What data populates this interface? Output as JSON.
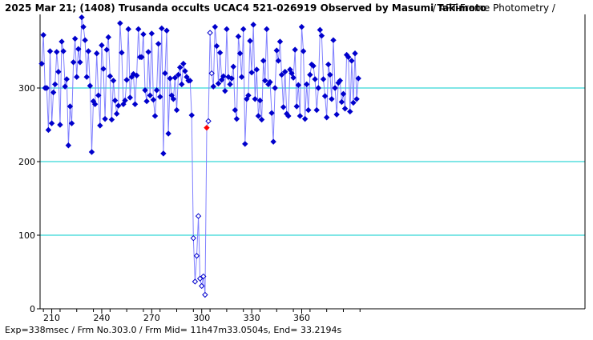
{
  "chart_data": {
    "type": "scatter",
    "title": "2025 Mar 21; (1408) Trusanda occults UCAC4 521-026919 Observed by Masumi Takimoto",
    "subtitle": " / APT-Frame Photometry /",
    "footer": "Exp=338msec / Frm No.303.0 / Frm Mid= 11h47m33.0504s, End= 33.2194s",
    "xlabel": "",
    "ylabel": "",
    "x_ticks": [
      210,
      240,
      270,
      300,
      330,
      360
    ],
    "y_ticks": [
      0,
      100,
      200,
      300
    ],
    "xlim": [
      203,
      530
    ],
    "ylim": [
      0,
      400
    ],
    "grid": "horizontal",
    "colors": {
      "line": "#8080ff",
      "marker": "#0000cc",
      "hollow": "#0000cc",
      "highlight": "#ff0000",
      "grid": "#00cccc"
    },
    "highlight_x": 303,
    "hollow_range": [
      295,
      306
    ],
    "series": [
      {
        "values": [
          [
            204,
            333
          ],
          [
            205,
            372
          ],
          [
            206,
            300
          ],
          [
            207,
            300
          ],
          [
            208,
            243
          ],
          [
            209,
            350
          ],
          [
            210,
            252
          ],
          [
            211,
            294
          ],
          [
            212,
            305
          ],
          [
            213,
            349
          ],
          [
            214,
            322
          ],
          [
            215,
            250
          ],
          [
            216,
            363
          ],
          [
            217,
            350
          ],
          [
            218,
            302
          ],
          [
            219,
            312
          ],
          [
            220,
            222
          ],
          [
            221,
            275
          ],
          [
            222,
            252
          ],
          [
            223,
            335
          ],
          [
            224,
            367
          ],
          [
            225,
            315
          ],
          [
            226,
            353
          ],
          [
            227,
            335
          ],
          [
            228,
            396
          ],
          [
            229,
            383
          ],
          [
            230,
            365
          ],
          [
            231,
            315
          ],
          [
            232,
            350
          ],
          [
            233,
            303
          ],
          [
            234,
            213
          ],
          [
            235,
            282
          ],
          [
            236,
            278
          ],
          [
            237,
            347
          ],
          [
            238,
            290
          ],
          [
            239,
            249
          ],
          [
            240,
            358
          ],
          [
            241,
            326
          ],
          [
            242,
            258
          ],
          [
            243,
            352
          ],
          [
            244,
            369
          ],
          [
            245,
            316
          ],
          [
            246,
            257
          ],
          [
            247,
            310
          ],
          [
            248,
            283
          ],
          [
            249,
            265
          ],
          [
            250,
            276
          ],
          [
            251,
            388
          ],
          [
            252,
            348
          ],
          [
            253,
            278
          ],
          [
            254,
            283
          ],
          [
            255,
            311
          ],
          [
            256,
            380
          ],
          [
            257,
            287
          ],
          [
            258,
            315
          ],
          [
            259,
            319
          ],
          [
            260,
            278
          ],
          [
            261,
            317
          ],
          [
            262,
            380
          ],
          [
            263,
            342
          ],
          [
            264,
            342
          ],
          [
            265,
            373
          ],
          [
            266,
            297
          ],
          [
            267,
            282
          ],
          [
            268,
            349
          ],
          [
            269,
            290
          ],
          [
            270,
            374
          ],
          [
            271,
            284
          ],
          [
            272,
            262
          ],
          [
            273,
            297
          ],
          [
            274,
            360
          ],
          [
            275,
            288
          ],
          [
            276,
            381
          ],
          [
            277,
            211
          ],
          [
            278,
            320
          ],
          [
            279,
            378
          ],
          [
            280,
            238
          ],
          [
            281,
            313
          ],
          [
            282,
            290
          ],
          [
            283,
            285
          ],
          [
            284,
            314
          ],
          [
            285,
            270
          ],
          [
            286,
            318
          ],
          [
            287,
            328
          ],
          [
            288,
            305
          ],
          [
            289,
            333
          ],
          [
            290,
            323
          ],
          [
            291,
            315
          ],
          [
            292,
            310
          ],
          [
            293,
            310
          ],
          [
            294,
            263
          ],
          [
            295,
            96
          ],
          [
            296,
            37
          ],
          [
            297,
            72
          ],
          [
            298,
            126
          ],
          [
            299,
            41
          ],
          [
            300,
            31
          ],
          [
            301,
            44
          ],
          [
            302,
            19
          ],
          [
            303,
            246
          ],
          [
            304,
            255
          ],
          [
            305,
            375
          ],
          [
            306,
            320
          ],
          [
            307,
            302
          ],
          [
            308,
            383
          ],
          [
            309,
            357
          ],
          [
            310,
            306
          ],
          [
            311,
            348
          ],
          [
            312,
            311
          ],
          [
            313,
            316
          ],
          [
            314,
            296
          ],
          [
            315,
            380
          ],
          [
            316,
            315
          ],
          [
            317,
            305
          ],
          [
            318,
            313
          ],
          [
            319,
            329
          ],
          [
            320,
            270
          ],
          [
            321,
            258
          ],
          [
            322,
            370
          ],
          [
            323,
            347
          ],
          [
            324,
            315
          ],
          [
            325,
            380
          ],
          [
            326,
            224
          ],
          [
            327,
            285
          ],
          [
            328,
            290
          ],
          [
            329,
            364
          ],
          [
            330,
            321
          ],
          [
            331,
            386
          ],
          [
            332,
            285
          ],
          [
            333,
            325
          ],
          [
            334,
            262
          ],
          [
            335,
            283
          ],
          [
            336,
            257
          ],
          [
            337,
            337
          ],
          [
            338,
            310
          ],
          [
            339,
            380
          ],
          [
            340,
            305
          ],
          [
            341,
            308
          ],
          [
            342,
            266
          ],
          [
            343,
            227
          ],
          [
            344,
            300
          ],
          [
            345,
            351
          ],
          [
            346,
            337
          ],
          [
            347,
            363
          ],
          [
            348,
            318
          ],
          [
            349,
            274
          ],
          [
            350,
            322
          ],
          [
            351,
            265
          ],
          [
            352,
            262
          ],
          [
            353,
            325
          ],
          [
            354,
            320
          ],
          [
            355,
            314
          ],
          [
            356,
            352
          ],
          [
            357,
            275
          ],
          [
            358,
            304
          ],
          [
            359,
            262
          ],
          [
            360,
            383
          ],
          [
            361,
            350
          ],
          [
            362,
            258
          ],
          [
            363,
            305
          ],
          [
            364,
            270
          ],
          [
            365,
            318
          ],
          [
            366,
            332
          ],
          [
            367,
            330
          ],
          [
            368,
            312
          ],
          [
            369,
            270
          ],
          [
            370,
            300
          ],
          [
            371,
            379
          ],
          [
            372,
            371
          ],
          [
            373,
            312
          ],
          [
            374,
            289
          ],
          [
            375,
            260
          ],
          [
            376,
            332
          ],
          [
            377,
            318
          ],
          [
            378,
            285
          ],
          [
            379,
            365
          ],
          [
            380,
            300
          ],
          [
            381,
            264
          ],
          [
            382,
            307
          ],
          [
            383,
            310
          ],
          [
            384,
            281
          ],
          [
            385,
            292
          ],
          [
            386,
            272
          ],
          [
            387,
            345
          ],
          [
            388,
            342
          ],
          [
            389,
            268
          ],
          [
            390,
            337
          ],
          [
            391,
            280
          ],
          [
            392,
            347
          ],
          [
            393,
            285
          ],
          [
            394,
            313
          ]
        ]
      }
    ]
  }
}
